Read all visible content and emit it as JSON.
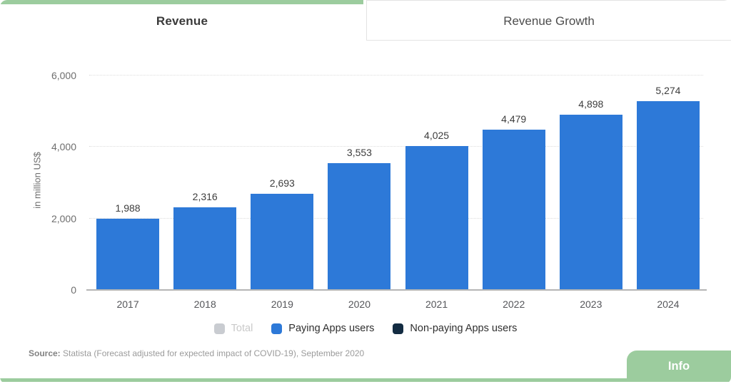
{
  "tabs": [
    {
      "label": "Revenue",
      "active": true
    },
    {
      "label": "Revenue Growth",
      "active": false
    }
  ],
  "chart_data": {
    "type": "bar",
    "categories": [
      "2017",
      "2018",
      "2019",
      "2020",
      "2021",
      "2022",
      "2023",
      "2024"
    ],
    "values": [
      1988,
      2316,
      2693,
      3553,
      4025,
      4479,
      4898,
      5274
    ],
    "value_labels": [
      "1,988",
      "2,316",
      "2,693",
      "3,553",
      "4,025",
      "4,479",
      "4,898",
      "5,274"
    ],
    "series_name": "Paying Apps users",
    "title": "Revenue",
    "xlabel": "",
    "ylabel": "in million US$",
    "ylim": [
      0,
      6000
    ],
    "yticks": [
      0,
      2000,
      4000,
      6000
    ],
    "ytick_labels": [
      "0",
      "2,000",
      "4,000",
      "6,000"
    ],
    "grid": true,
    "legend_position": "bottom"
  },
  "legend": [
    {
      "label": "Total",
      "color": "#c9ccd1",
      "disabled": true
    },
    {
      "label": "Paying Apps users",
      "color": "#2d79d8",
      "disabled": false
    },
    {
      "label": "Non-paying Apps users",
      "color": "#132c42",
      "disabled": false
    }
  ],
  "source": {
    "prefix": "Source:",
    "text": " Statista (Forecast adjusted for expected impact of COVID-19), September 2020"
  },
  "info_button": {
    "label": "Info"
  },
  "colors": {
    "accent_green": "#9ccc9e",
    "bar_blue": "#2d79d8",
    "navy": "#132c42",
    "disabled_gray": "#c9ccd1",
    "gridline": "#dcdcdc"
  }
}
